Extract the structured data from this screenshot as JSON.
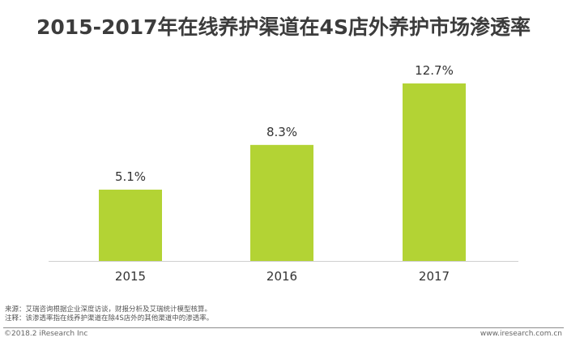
{
  "title": "2015-2017年在线养护渠道在4S店外养护市场渗透率",
  "notes": {
    "source": "来源：艾瑞咨询根据企业深度访谈，财报分析及艾瑞统计模型核算。",
    "note": "注释：该渗透率指在线养护渠道在除4S店外的其他渠道中的渗透率。"
  },
  "footer": {
    "copyright": "©2018.2 iResearch Inc",
    "website": "www.iresearch.com.cn"
  },
  "colors": {
    "bar": "#b3d334",
    "axis": "#cfcfcf"
  },
  "chart_data": {
    "type": "bar",
    "title": "2015-2017年在线养护渠道在4S店外养护市场渗透率",
    "categories": [
      "2015",
      "2016",
      "2017"
    ],
    "values": [
      5.1,
      8.3,
      12.7
    ],
    "data_labels": [
      "5.1%",
      "8.3%",
      "12.7%"
    ],
    "xlabel": "",
    "ylabel": "",
    "ylim": [
      0,
      16
    ],
    "grid": false,
    "legend": "none"
  }
}
